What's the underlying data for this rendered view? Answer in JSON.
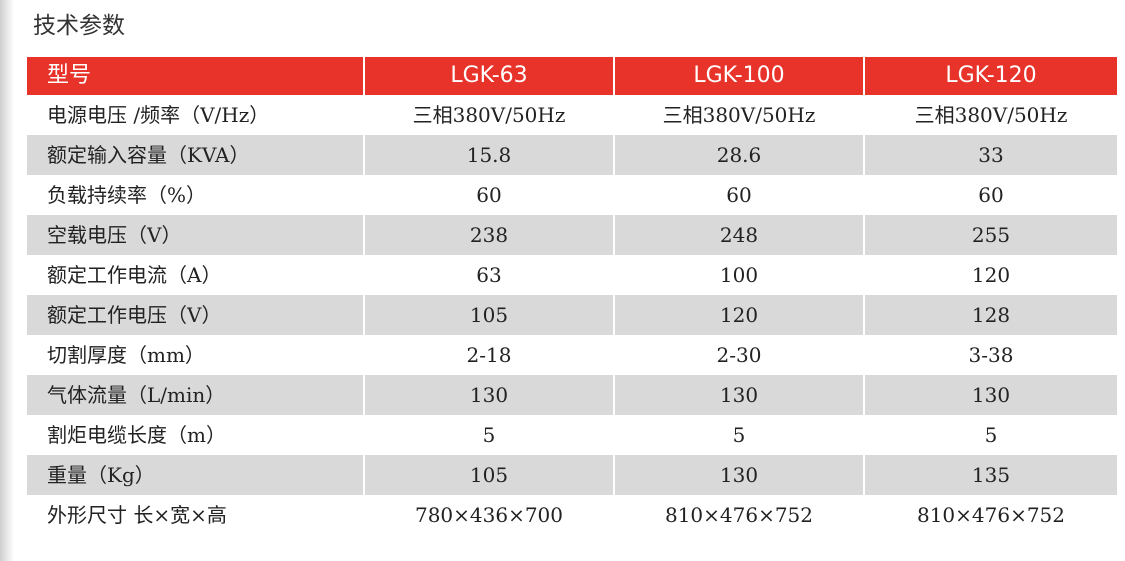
{
  "title": "技术参数",
  "table": {
    "header": [
      "型号",
      "LGK-63",
      "LGK-100",
      "LGK-120"
    ],
    "rows": [
      [
        "电源电压 /频率（V/Hz）",
        "三相380V/50Hz",
        "三相380V/50Hz",
        "三相380V/50Hz"
      ],
      [
        "额定输入容量（KVA）",
        "15.8",
        "28.6",
        "33"
      ],
      [
        "负载持续率（%）",
        "60",
        "60",
        "60"
      ],
      [
        "空载电压（V）",
        "238",
        "248",
        "255"
      ],
      [
        "额定工作电流（A）",
        "63",
        "100",
        "120"
      ],
      [
        "额定工作电压（V）",
        "105",
        "120",
        "128"
      ],
      [
        "切割厚度（mm）",
        "2-18",
        "2-30",
        "3-38"
      ],
      [
        "气体流量（L/min）",
        "130",
        "130",
        "130"
      ],
      [
        "割炬电缆长度（m）",
        "5",
        "5",
        "5"
      ],
      [
        "重量（Kg）",
        "105",
        "130",
        "135"
      ],
      [
        "外形尺寸 长×宽×高",
        "780×436×700",
        "810×476×752",
        "810×476×752"
      ]
    ]
  }
}
